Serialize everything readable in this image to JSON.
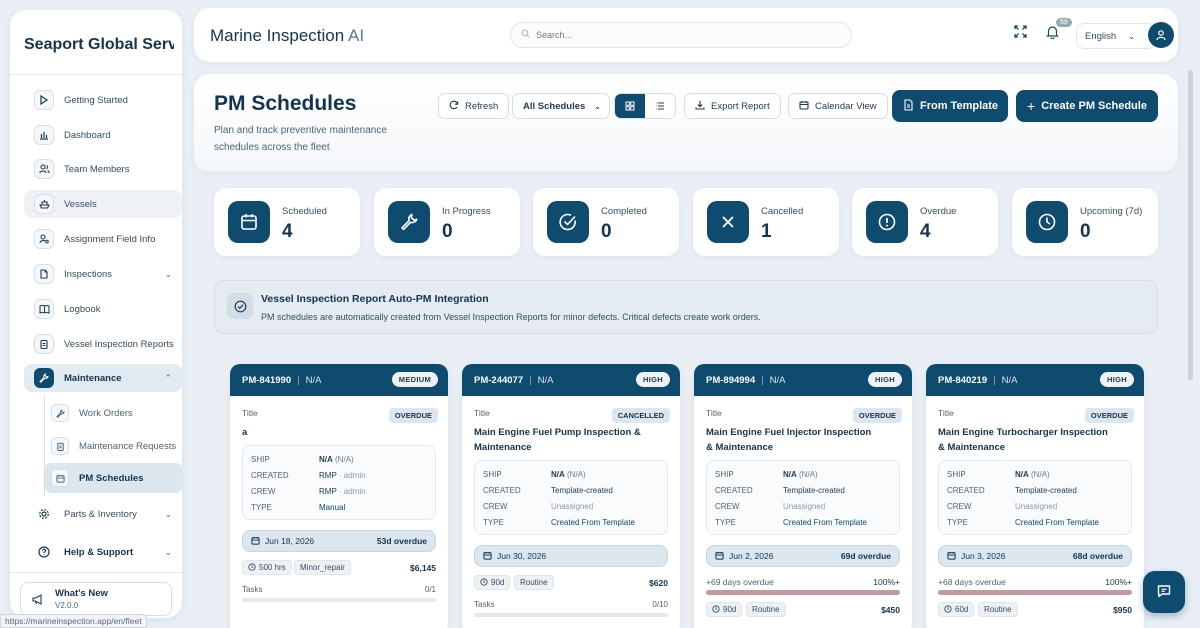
{
  "sidebar": {
    "brand": "Seaport Global Serv...",
    "items": [
      {
        "label": "Getting Started",
        "icon": "play-icon"
      },
      {
        "label": "Dashboard",
        "icon": "bar-chart-icon"
      },
      {
        "label": "Team Members",
        "icon": "users-icon"
      },
      {
        "label": "Vessels",
        "icon": "ship-icon"
      },
      {
        "label": "Assignment Field Info",
        "icon": "user-settings-icon"
      },
      {
        "label": "Inspections",
        "icon": "file-icon"
      },
      {
        "label": "Logbook",
        "icon": "book-icon"
      },
      {
        "label": "Vessel Inspection Reports",
        "icon": "clipboard-icon"
      },
      {
        "label": "Maintenance",
        "icon": "wrench-icon"
      },
      {
        "label": "Parts & Inventory",
        "icon": "gear-icon"
      },
      {
        "label": "Help & Support",
        "icon": "help-icon"
      }
    ],
    "sub_items": [
      {
        "label": "Work Orders",
        "icon": "wrench-icon"
      },
      {
        "label": "Maintenance Requests",
        "icon": "clipboard-icon"
      },
      {
        "label": "PM Schedules",
        "icon": "calendar-icon"
      }
    ],
    "whats_new": {
      "title": "What's New",
      "version": "V2.0.0"
    },
    "status_url": "https://marineinspection.app/en/fleet"
  },
  "topbar": {
    "title": "Marine Inspection",
    "title_ai": "AI",
    "search_placeholder": "Search...",
    "notification_count": "69",
    "language": "English"
  },
  "header": {
    "title": "PM Schedules",
    "subtitle": "Plan and track preventive maintenance schedules across the fleet",
    "refresh": "Refresh",
    "filter": "All Schedules",
    "export": "Export Report",
    "calendar": "Calendar View",
    "from_template": "From Template",
    "create": "Create PM Schedule"
  },
  "stats": [
    {
      "label": "Scheduled",
      "value": "4",
      "icon": "calendar-icon"
    },
    {
      "label": "In Progress",
      "value": "0",
      "icon": "wrench-icon"
    },
    {
      "label": "Completed",
      "value": "0",
      "icon": "check-circle-icon"
    },
    {
      "label": "Cancelled",
      "value": "1",
      "icon": "x-icon"
    },
    {
      "label": "Overdue",
      "value": "4",
      "icon": "alert-circle-icon"
    },
    {
      "label": "Upcoming (7d)",
      "value": "0",
      "icon": "clock-icon"
    }
  ],
  "info": {
    "title": "Vessel Inspection Report Auto-PM Integration",
    "text": "PM schedules are automatically created from Vessel Inspection Reports for minor defects. Critical defects create work orders."
  },
  "labels": {
    "title": "Title",
    "ship": "SHIP",
    "created": "CREATED",
    "crew": "CREW",
    "type": "TYPE",
    "tasks": "Tasks",
    "na": "N/A"
  },
  "cards": [
    {
      "id": "PM-841990",
      "priority": "MEDIUM",
      "status": "OVERDUE",
      "title": "a",
      "ship": "N/A",
      "ship_sub": "(N/A)",
      "created": "RMP",
      "created_sub": "· admin",
      "crew": "RMP",
      "crew_sub": "· admin",
      "type": "Manual",
      "date": "Jun 18, 2026",
      "overdue": "53d overdue",
      "interval": "500 hrs",
      "category": "Minor_repair",
      "price": "$6,145",
      "tasks": "0/1"
    },
    {
      "id": "PM-244077",
      "priority": "HIGH",
      "status": "CANCELLED",
      "title": "Main Engine Fuel Pump Inspection & Maintenance",
      "ship": "N/A",
      "ship_sub": "(N/A)",
      "created": "Template-created",
      "crew": "Unassigned",
      "type": "Created From Template",
      "date": "Jun 30, 2026",
      "interval": "90d",
      "category": "Routine",
      "price": "$620",
      "tasks": "0/10"
    },
    {
      "id": "PM-894994",
      "priority": "HIGH",
      "status": "OVERDUE",
      "title": "Main Engine Fuel Injector Inspection & Maintenance",
      "ship": "N/A",
      "ship_sub": "(N/A)",
      "created": "Template-created",
      "crew": "Unassigned",
      "type": "Created From Template",
      "date": "Jun 2, 2026",
      "overdue": "69d overdue",
      "od_text": "+69 days overdue",
      "od_pct": "100%+",
      "interval": "90d",
      "category": "Routine",
      "price": "$450"
    },
    {
      "id": "PM-840219",
      "priority": "HIGH",
      "status": "OVERDUE",
      "title": "Main Engine Turbocharger Inspection & Maintenance",
      "ship": "N/A",
      "ship_sub": "(N/A)",
      "created": "Template-created",
      "crew": "Unassigned",
      "type": "Created From Template",
      "date": "Jun 3, 2026",
      "overdue": "68d overdue",
      "od_text": "+68 days overdue",
      "od_pct": "100%+",
      "interval": "60d",
      "category": "Routine",
      "price": "$950"
    }
  ]
}
